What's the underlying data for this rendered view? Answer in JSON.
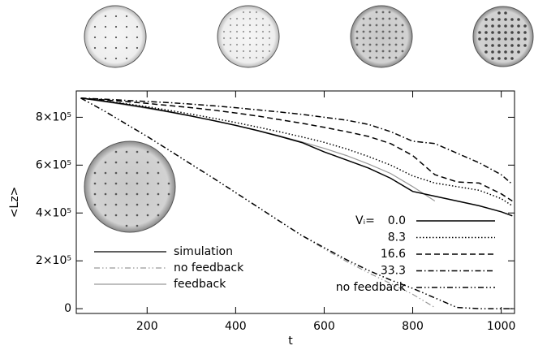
{
  "chart_data": {
    "type": "line",
    "x_label": "t",
    "y_label": "<Lz>",
    "xlim": [
      40,
      1030
    ],
    "ylim": [
      -20000,
      910000
    ],
    "xticks": [
      200,
      400,
      600,
      800,
      1000
    ],
    "yticks": [
      0,
      {
        "value": 200000,
        "label": "2×10⁵"
      },
      {
        "value": 400000,
        "label": "4×10⁵"
      },
      {
        "value": 600000,
        "label": "6×10⁵"
      },
      {
        "value": 800000,
        "label": "8×10⁵"
      }
    ],
    "x": [
      50,
      100,
      150,
      200,
      250,
      300,
      350,
      400,
      450,
      500,
      550,
      600,
      650,
      700,
      750,
      800,
      850,
      900,
      950,
      1000,
      1025
    ],
    "legend_title": "Vᵢ=",
    "series": [
      {
        "name": "0.0",
        "color": "#000000",
        "linestyle": "solid",
        "values": [
          880000,
          868000,
          855000,
          840000,
          823000,
          805000,
          786000,
          766000,
          744000,
          720000,
          694000,
          655000,
          622000,
          588000,
          545000,
          490000,
          470000,
          450000,
          430000,
          405000,
          388000
        ]
      },
      {
        "name": "8.3",
        "color": "#000000",
        "linestyle": "dotted",
        "values": [
          880000,
          869000,
          857000,
          844000,
          829000,
          813000,
          796000,
          778000,
          759000,
          739000,
          718000,
          695000,
          668000,
          636000,
          600000,
          555000,
          525000,
          510000,
          495000,
          460000,
          430000
        ]
      },
      {
        "name": "16.6",
        "color": "#000000",
        "linestyle": "dashed",
        "values": [
          880000,
          873000,
          866000,
          858000,
          849000,
          840000,
          830000,
          818000,
          805000,
          790000,
          775000,
          758000,
          740000,
          720000,
          690000,
          640000,
          560000,
          530000,
          525000,
          480000,
          450000
        ]
      },
      {
        "name": "33.3",
        "color": "#000000",
        "linestyle": "dashdot",
        "values": [
          880000,
          876000,
          871000,
          866000,
          861000,
          855000,
          848000,
          840000,
          831000,
          822000,
          812000,
          800000,
          788000,
          770000,
          740000,
          700000,
          690000,
          650000,
          610000,
          560000,
          520000
        ]
      },
      {
        "name": "no feedback",
        "color": "#000000",
        "linestyle": "dashdotdot",
        "values": [
          880000,
          830000,
          775000,
          720000,
          662000,
          603000,
          545000,
          485000,
          425000,
          365000,
          305000,
          255000,
          205000,
          160000,
          120000,
          85000,
          45000,
          5000,
          0,
          0,
          0
        ]
      }
    ],
    "style_legend": [
      {
        "name": "simulation",
        "color": "#000000",
        "linestyle": "solid"
      }
    ],
    "models": [
      {
        "name": "no feedback",
        "color": "#999999",
        "linestyle": "dashdotdot",
        "values": [
          880000,
          830000,
          775000,
          720000,
          662000,
          603000,
          545000,
          485000,
          425000,
          365000,
          305000,
          250000,
          198000,
          150000,
          105000,
          60000,
          5000,
          null,
          null,
          null,
          null
        ]
      },
      {
        "name": "feedback",
        "color": "#999999",
        "linestyle": "solid",
        "values": [
          880000,
          866000,
          852000,
          837000,
          821000,
          804000,
          786000,
          766000,
          745000,
          722000,
          697000,
          670000,
          640000,
          605000,
          565000,
          510000,
          450000,
          null,
          null,
          null,
          null
        ]
      }
    ]
  }
}
